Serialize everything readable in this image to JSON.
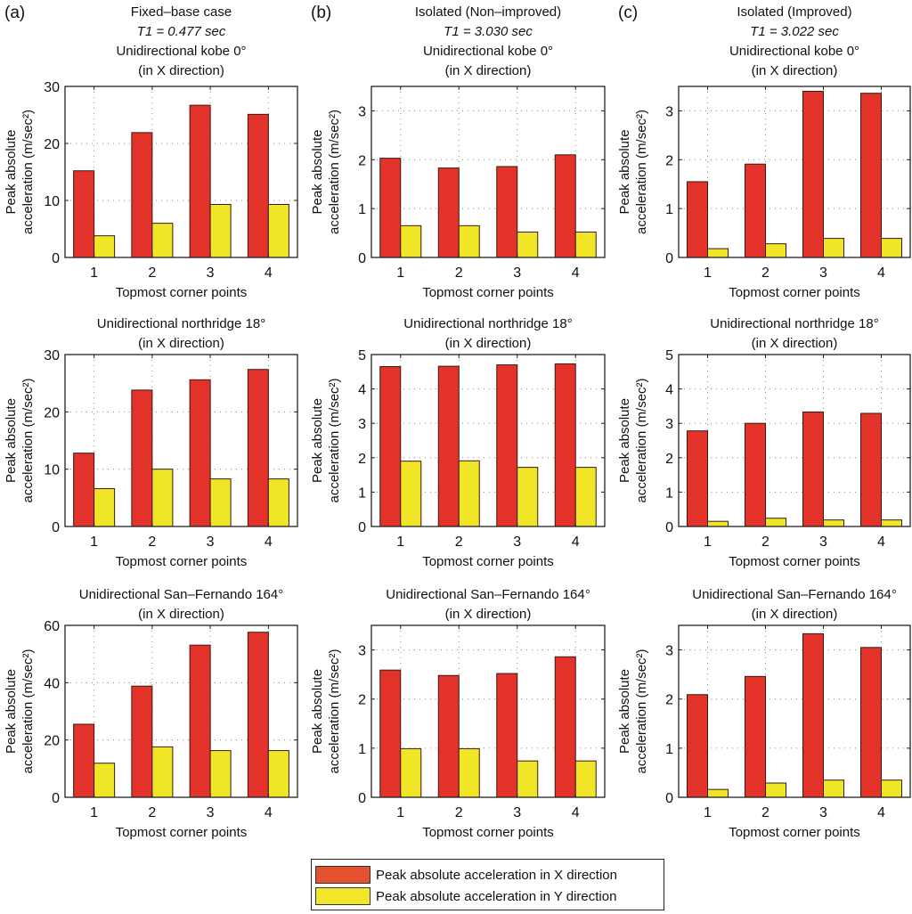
{
  "legend": {
    "x_label": "Peak absolute acceleration in X direction",
    "y_label": "Peak absolute acceleration in Y direction",
    "x_color": "#e4512e",
    "y_color": "#f2e52a"
  },
  "colors": {
    "x_bar": "#e3322a",
    "y_bar": "#f1e528",
    "edge": "#3a1a10"
  },
  "columns": [
    {
      "panel_label": "(a)",
      "header_lines": [
        "Fixed–base case",
        "T1 = 0.477 sec"
      ]
    },
    {
      "panel_label": "(b)",
      "header_lines": [
        "Isolated (Non–improved)",
        "T1 = 3.030 sec"
      ]
    },
    {
      "panel_label": "(c)",
      "header_lines": [
        "Isolated (Improved)",
        "T1 = 3.022 sec"
      ]
    }
  ],
  "chart_data": [
    {
      "type": "bar",
      "panel": "a",
      "row": 1,
      "title": [
        "Unidirectional kobe 0°",
        "(in X direction)"
      ],
      "xlabel": "Topmost corner points",
      "ylabel": [
        "Peak absolute",
        "acceleration (m/sec²)"
      ],
      "categories": [
        "1",
        "2",
        "3",
        "4"
      ],
      "ylim": [
        0,
        30
      ],
      "yticks": [
        0,
        10,
        20,
        30
      ],
      "grid": true,
      "series": [
        {
          "name": "Peak absolute acceleration in X direction",
          "values": [
            15.2,
            21.9,
            26.7,
            25.1
          ]
        },
        {
          "name": "Peak absolute acceleration in Y direction",
          "values": [
            3.8,
            6.0,
            9.3,
            9.3
          ]
        }
      ]
    },
    {
      "type": "bar",
      "panel": "b",
      "row": 1,
      "title": [
        "Unidirectional kobe 0°",
        "(in X direction)"
      ],
      "xlabel": "Topmost corner points",
      "ylabel": [
        "Peak absolute",
        "acceleration (m/sec²)"
      ],
      "categories": [
        "1",
        "2",
        "3",
        "4"
      ],
      "ylim": [
        0,
        3.5
      ],
      "yticks": [
        0,
        1,
        2,
        3
      ],
      "grid": true,
      "series": [
        {
          "name": "Peak absolute acceleration in X direction",
          "values": [
            2.03,
            1.83,
            1.86,
            2.1
          ]
        },
        {
          "name": "Peak absolute acceleration in Y direction",
          "values": [
            0.65,
            0.65,
            0.52,
            0.52
          ]
        }
      ]
    },
    {
      "type": "bar",
      "panel": "c",
      "row": 1,
      "title": [
        "Unidirectional kobe 0°",
        "(in X direction)"
      ],
      "xlabel": "Topmost corner points",
      "ylabel": [
        "Peak absolute",
        "acceleration (m/sec²)"
      ],
      "categories": [
        "1",
        "2",
        "3",
        "4"
      ],
      "ylim": [
        0,
        3.5
      ],
      "yticks": [
        0,
        1,
        2,
        3
      ],
      "grid": true,
      "series": [
        {
          "name": "Peak absolute acceleration in X direction",
          "values": [
            1.55,
            1.91,
            3.4,
            3.36
          ]
        },
        {
          "name": "Peak absolute acceleration in Y direction",
          "values": [
            0.18,
            0.28,
            0.39,
            0.39
          ]
        }
      ]
    },
    {
      "type": "bar",
      "panel": "a",
      "row": 2,
      "title": [
        "Unidirectional northridge 18°",
        "(in X direction)"
      ],
      "xlabel": "Topmost corner points",
      "ylabel": [
        "Peak absolute",
        "acceleration (m/sec²)"
      ],
      "categories": [
        "1",
        "2",
        "3",
        "4"
      ],
      "ylim": [
        0,
        30
      ],
      "yticks": [
        0,
        10,
        20,
        30
      ],
      "grid": true,
      "series": [
        {
          "name": "Peak absolute acceleration in X direction",
          "values": [
            12.8,
            23.8,
            25.6,
            27.4
          ]
        },
        {
          "name": "Peak absolute acceleration in Y direction",
          "values": [
            6.6,
            10.0,
            8.3,
            8.3
          ]
        }
      ]
    },
    {
      "type": "bar",
      "panel": "b",
      "row": 2,
      "title": [
        "Unidirectional northridge 18°",
        "(in X direction)"
      ],
      "xlabel": "Topmost corner points",
      "ylabel": [
        "Peak absolute",
        "acceleration (m/sec²)"
      ],
      "categories": [
        "1",
        "2",
        "3",
        "4"
      ],
      "ylim": [
        0,
        5
      ],
      "yticks": [
        0,
        1,
        2,
        3,
        4,
        5
      ],
      "grid": true,
      "series": [
        {
          "name": "Peak absolute acceleration in X direction",
          "values": [
            4.65,
            4.66,
            4.7,
            4.73
          ]
        },
        {
          "name": "Peak absolute acceleration in Y direction",
          "values": [
            1.9,
            1.91,
            1.72,
            1.72
          ]
        }
      ]
    },
    {
      "type": "bar",
      "panel": "c",
      "row": 2,
      "title": [
        "Unidirectional northridge 18°",
        "(in X direction)"
      ],
      "xlabel": "Topmost corner points",
      "ylabel": [
        "Peak absolute",
        "acceleration (m/sec²)"
      ],
      "categories": [
        "1",
        "2",
        "3",
        "4"
      ],
      "ylim": [
        0,
        5
      ],
      "yticks": [
        0,
        1,
        2,
        3,
        4,
        5
      ],
      "grid": true,
      "series": [
        {
          "name": "Peak absolute acceleration in X direction",
          "values": [
            2.78,
            3.0,
            3.33,
            3.29
          ]
        },
        {
          "name": "Peak absolute acceleration in Y direction",
          "values": [
            0.15,
            0.24,
            0.19,
            0.19
          ]
        }
      ]
    },
    {
      "type": "bar",
      "panel": "a",
      "row": 3,
      "title": [
        "Unidirectional San–Fernando 164°",
        "(in X direction)"
      ],
      "xlabel": "Topmost corner points",
      "ylabel": [
        "Peak absolute",
        "acceleration (m/sec²)"
      ],
      "categories": [
        "1",
        "2",
        "3",
        "4"
      ],
      "ylim": [
        0,
        60
      ],
      "yticks": [
        0,
        20,
        40,
        60
      ],
      "grid": true,
      "series": [
        {
          "name": "Peak absolute acceleration in X direction",
          "values": [
            25.5,
            38.8,
            53.1,
            57.6
          ]
        },
        {
          "name": "Peak absolute acceleration in Y direction",
          "values": [
            11.9,
            17.6,
            16.3,
            16.3
          ]
        }
      ]
    },
    {
      "type": "bar",
      "panel": "b",
      "row": 3,
      "title": [
        "Unidirectional San–Fernando 164°",
        "(in X direction)"
      ],
      "xlabel": "Topmost corner points",
      "ylabel": [
        "Peak absolute",
        "acceleration (m/sec²)"
      ],
      "categories": [
        "1",
        "2",
        "3",
        "4"
      ],
      "ylim": [
        0,
        3.5
      ],
      "yticks": [
        0,
        1,
        2,
        3
      ],
      "grid": true,
      "series": [
        {
          "name": "Peak absolute acceleration in X direction",
          "values": [
            2.59,
            2.48,
            2.52,
            2.86
          ]
        },
        {
          "name": "Peak absolute acceleration in Y direction",
          "values": [
            0.99,
            0.99,
            0.74,
            0.74
          ]
        }
      ]
    },
    {
      "type": "bar",
      "panel": "c",
      "row": 3,
      "title": [
        "Unidirectional San–Fernando 164°",
        "(in X direction)"
      ],
      "xlabel": "Topmost corner points",
      "ylabel": [
        "Peak absolute",
        "acceleration (m/sec²)"
      ],
      "categories": [
        "1",
        "2",
        "3",
        "4"
      ],
      "ylim": [
        0,
        3.5
      ],
      "yticks": [
        0,
        1,
        2,
        3
      ],
      "grid": true,
      "series": [
        {
          "name": "Peak absolute acceleration in X direction",
          "values": [
            2.09,
            2.46,
            3.33,
            3.05
          ]
        },
        {
          "name": "Peak absolute acceleration in Y direction",
          "values": [
            0.16,
            0.29,
            0.35,
            0.35
          ]
        }
      ]
    }
  ]
}
